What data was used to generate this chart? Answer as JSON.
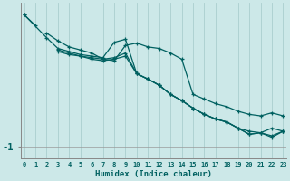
{
  "xlabel": "Humidex (Indice chaleur)",
  "bg_color": "#cce8e8",
  "line_color": "#006060",
  "grid_color": "#aacece",
  "x_values": [
    0,
    1,
    2,
    3,
    4,
    5,
    6,
    7,
    8,
    9,
    10,
    11,
    12,
    13,
    14,
    15,
    16,
    17,
    18,
    19,
    20,
    21,
    22,
    23
  ],
  "series": [
    [
      0.72,
      0.58,
      null,
      null,
      null,
      null,
      null,
      null,
      null,
      null,
      null,
      null,
      null,
      null,
      null,
      null,
      null,
      null,
      null,
      null,
      null,
      null,
      null,
      null
    ],
    [
      null,
      null,
      0.48,
      0.38,
      0.3,
      0.26,
      0.22,
      0.14,
      0.12,
      0.32,
      0.35,
      0.3,
      0.28,
      0.22,
      0.14,
      -0.32,
      -0.38,
      -0.44,
      -0.48,
      -0.54,
      -0.58,
      -0.6,
      -0.56,
      -0.6
    ],
    [
      null,
      null,
      null,
      null,
      null,
      null,
      null,
      null,
      null,
      null,
      null,
      null,
      null,
      null,
      null,
      null,
      null,
      null,
      null,
      null,
      null,
      null,
      null,
      null
    ],
    [
      0.72,
      null,
      0.42,
      0.28,
      0.24,
      0.2,
      0.18,
      0.16,
      0.36,
      0.4,
      -0.05,
      -0.12,
      -0.2,
      -0.32,
      -0.4,
      -0.5,
      -0.58,
      -0.64,
      -0.68,
      -0.76,
      -0.8,
      -0.82,
      -0.76,
      -0.8
    ],
    [
      null,
      null,
      null,
      0.26,
      0.22,
      0.18,
      0.16,
      0.14,
      0.16,
      0.22,
      -0.05,
      -0.12,
      -0.2,
      -0.32,
      -0.4,
      -0.5,
      -0.58,
      -0.64,
      -0.68,
      -0.76,
      -0.84,
      -0.82,
      -0.86,
      -0.8
    ],
    [
      null,
      null,
      null,
      0.24,
      0.2,
      0.18,
      0.14,
      0.12,
      0.14,
      0.18,
      -0.05,
      -0.12,
      -0.2,
      -0.32,
      -0.4,
      -0.5,
      -0.58,
      -0.64,
      -0.68,
      -0.76,
      -0.84,
      -0.82,
      -0.88,
      -0.8
    ]
  ],
  "yticks": [
    -1
  ],
  "ylim": [
    -1.15,
    0.88
  ],
  "xlim": [
    -0.3,
    23.3
  ]
}
